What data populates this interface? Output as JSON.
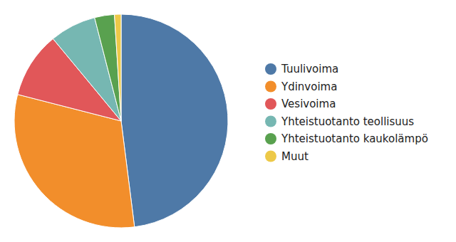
{
  "chart_data": {
    "type": "pie",
    "categories": [
      "Tuulivoima",
      "Ydinvoima",
      "Vesivoima",
      "Yhteistuotanto teollisuus",
      "Yhteistuotanto kaukolämpö",
      "Muut"
    ],
    "values": [
      48,
      31,
      10,
      7,
      3,
      1
    ],
    "colors": [
      "#4e79a7",
      "#f28e2b",
      "#e15759",
      "#76b7b2",
      "#59a14f",
      "#edc948"
    ],
    "legend": "right"
  }
}
